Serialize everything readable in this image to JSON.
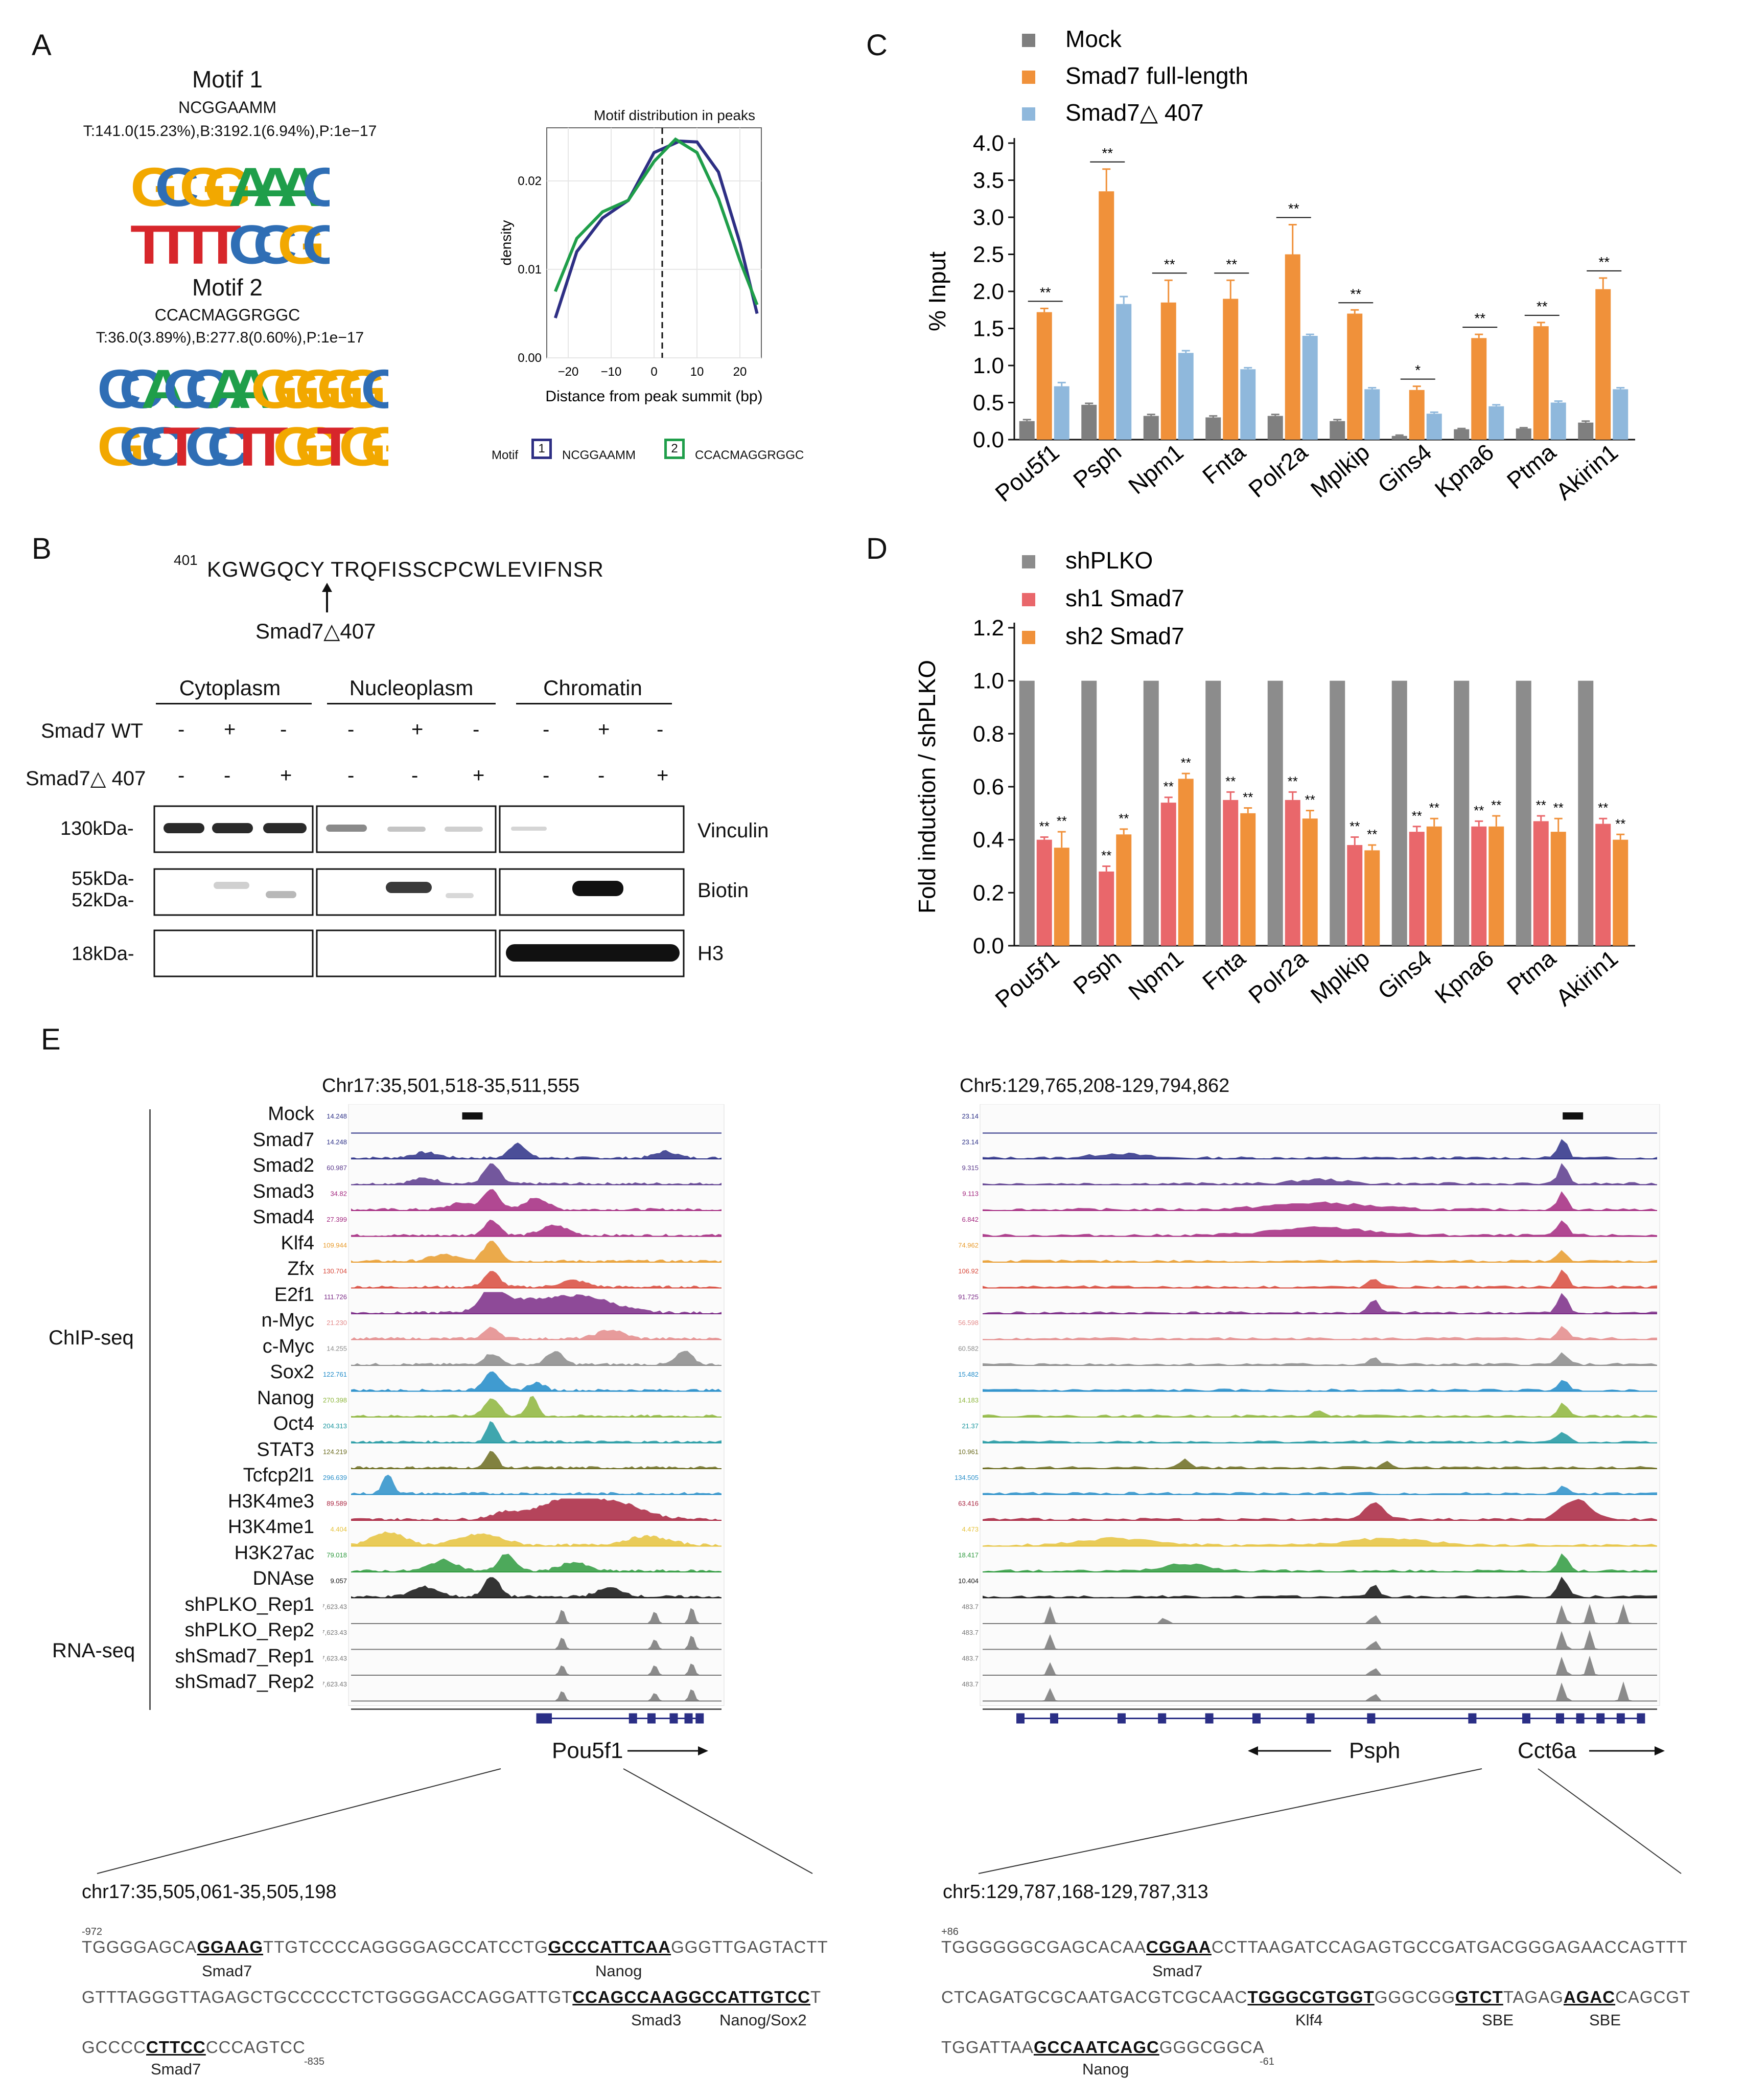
{
  "panel_letters": {
    "a": "A",
    "b": "B",
    "c": "C",
    "d": "D",
    "e": "E"
  },
  "panelA": {
    "motif1": {
      "title": "Motif 1",
      "consensus": "NCGGAAMM",
      "stats": "T:141.0(15.23%),B:3192.1(6.94%),P:1e−17",
      "logo_fwd": "GCGGAAAC",
      "logo_rev": "TTTTCCGC"
    },
    "motif2": {
      "title": "Motif 2",
      "consensus": "CCACMAGGRGGC",
      "stats": "T:36.0(3.89%),B:277.8(0.60%),P:1e−17",
      "logo_fwd": "CCACCAAGGGGGC",
      "logo_rev": "GCCTCCTTGGTGG"
    },
    "density": {
      "title": "Motif distribution in peaks",
      "xlabel": "Distance from peak summit (bp)",
      "ylabel": "density",
      "xticks": [
        "−20",
        "−10",
        "0",
        "10",
        "20"
      ],
      "yticks": [
        "0.00",
        "0.01",
        "0.02"
      ],
      "legend_title": "Motif",
      "legend": [
        {
          "num": "1",
          "name": "NCGGAAMM",
          "color": "#2e2f84"
        },
        {
          "num": "2",
          "name": "CCACMAGGRGGC",
          "color": "#1f9e4a"
        }
      ]
    }
  },
  "chart_data": [
    {
      "type": "bar",
      "panel": "C",
      "categories": [
        "Pou5f1",
        "Psph",
        "Npm1",
        "Fnta",
        "Polr2a",
        "Mplkip",
        "Gins4",
        "Kpna6",
        "Ptma",
        "Akirin1"
      ],
      "series": [
        {
          "name": "Mock",
          "color": "#7f7f7f",
          "values": [
            0.25,
            0.47,
            0.32,
            0.3,
            0.32,
            0.25,
            0.05,
            0.14,
            0.15,
            0.23
          ],
          "errors": [
            0.02,
            0.02,
            0.02,
            0.02,
            0.02,
            0.02,
            0.01,
            0.01,
            0.01,
            0.02
          ]
        },
        {
          "name": "Smad7 full-length",
          "color": "#f0913a",
          "values": [
            1.72,
            3.35,
            1.85,
            1.9,
            2.5,
            1.7,
            0.67,
            1.37,
            1.53,
            2.03
          ],
          "errors": [
            0.05,
            0.3,
            0.3,
            0.25,
            0.4,
            0.05,
            0.05,
            0.05,
            0.05,
            0.15
          ]
        },
        {
          "name": "Smad7△ 407",
          "color": "#8fb8dc",
          "values": [
            0.72,
            1.83,
            1.17,
            0.95,
            1.4,
            0.68,
            0.35,
            0.45,
            0.5,
            0.68
          ],
          "errors": [
            0.05,
            0.1,
            0.03,
            0.02,
            0.02,
            0.02,
            0.02,
            0.02,
            0.02,
            0.02
          ]
        }
      ],
      "significance": [
        "**",
        "**",
        "**",
        "**",
        "**",
        "**",
        "*",
        "**",
        "**",
        "**"
      ],
      "ylabel": "% Input",
      "ylim": [
        0,
        4.0
      ],
      "yticks": [
        "0.0",
        "0.5",
        "1.0",
        "1.5",
        "2.0",
        "2.5",
        "3.0",
        "3.5",
        "4.0"
      ]
    },
    {
      "type": "bar",
      "panel": "D",
      "categories": [
        "Pou5f1",
        "Psph",
        "Npm1",
        "Fnta",
        "Polr2a",
        "Mplkip",
        "Gins4",
        "Kpna6",
        "Ptma",
        "Akirin1"
      ],
      "series": [
        {
          "name": "shPLKO",
          "color": "#8c8c8c",
          "values": [
            1,
            1,
            1,
            1,
            1,
            1,
            1,
            1,
            1,
            1
          ],
          "errors": [
            0,
            0,
            0,
            0,
            0,
            0,
            0,
            0,
            0,
            0
          ]
        },
        {
          "name": "sh1 Smad7",
          "color": "#e9676b",
          "values": [
            0.4,
            0.28,
            0.54,
            0.55,
            0.55,
            0.38,
            0.43,
            0.45,
            0.47,
            0.46
          ],
          "errors": [
            0.01,
            0.02,
            0.02,
            0.03,
            0.03,
            0.03,
            0.02,
            0.02,
            0.02,
            0.02
          ]
        },
        {
          "name": "sh2 Smad7",
          "color": "#f0913a",
          "values": [
            0.37,
            0.42,
            0.63,
            0.5,
            0.48,
            0.36,
            0.45,
            0.45,
            0.43,
            0.4
          ],
          "errors": [
            0.06,
            0.02,
            0.02,
            0.02,
            0.03,
            0.02,
            0.03,
            0.04,
            0.05,
            0.02
          ]
        }
      ],
      "significance": [
        "**",
        "**",
        "**",
        "**",
        "**",
        "**",
        "**",
        "**",
        "**",
        "**"
      ],
      "ylabel": "Fold induction / shPLKO",
      "ylim": [
        0,
        1.2
      ],
      "yticks": [
        "0.0",
        "0.2",
        "0.4",
        "0.6",
        "0.8",
        "1.0",
        "1.2"
      ]
    }
  ],
  "panelB": {
    "peptide_num": "401",
    "peptide": "KGWGQCY TRQFISSCPCWLEVIFNSR",
    "arrow_label": "Smad7△407",
    "fractions": [
      "Cytoplasm",
      "Nucleoplasm",
      "Chromatin"
    ],
    "row_labels": [
      "Smad7 WT",
      "Smad7△ 407"
    ],
    "wt_signs": [
      "-",
      "+",
      "-",
      "-",
      "+",
      "-",
      "-",
      "+",
      "-"
    ],
    "del_signs": [
      "-",
      "-",
      "+",
      "-",
      "-",
      "+",
      "-",
      "-",
      "+"
    ],
    "mw": [
      "130kDa-",
      "55kDa-",
      "52kDa-",
      "18kDa-"
    ],
    "blots": [
      "Vinculin",
      "Biotin",
      "H3"
    ]
  },
  "panelE": {
    "left_region": "Chr17:35,501,518-35,511,555",
    "right_region": "Chr5:129,765,208-129,794,862",
    "chip_label": "ChIP-seq",
    "rna_label": "RNA-seq",
    "tracks": [
      "Mock",
      "Smad7",
      "Smad2",
      "Smad3",
      "Smad4",
      "Klf4",
      "Zfx",
      "E2f1",
      "n-Myc",
      "c-Myc",
      "Sox2",
      "Nanog",
      "Oct4",
      "STAT3",
      "Tcfcp2l1",
      "H3K4me3",
      "H3K4me1",
      "H3K27ac",
      "DNAse",
      "shPLKO_Rep1",
      "shPLKO_Rep2",
      "shSmad7_Rep1",
      "shSmad7_Rep2"
    ],
    "track_colors": [
      "#2b2f86",
      "#2b2f86",
      "#5b3a8c",
      "#a3287f",
      "#a3287f",
      "#e89b2c",
      "#d84a3c",
      "#7a2a86",
      "#e38a8a",
      "#8a8a8a",
      "#1e8ac8",
      "#8db53b",
      "#1d97a0",
      "#6b6b1f",
      "#2a8fc9",
      "#a8233e",
      "#e5c23b",
      "#2e9a3e",
      "#111111",
      "#777777",
      "#777777",
      "#777777",
      "#777777"
    ],
    "left_scales": [
      "14.248",
      "14.248",
      "60.987",
      "34.82",
      "27.399",
      "109.944",
      "130.704",
      "111.726",
      "21.230",
      "14.255",
      "122.761",
      "270.398",
      "204.313",
      "124.219",
      "296.639",
      "89.589",
      "4.404",
      "79.018",
      "9.057",
      "7,623.43",
      "7,623.43",
      "7,623.43",
      "7,623.43"
    ],
    "right_scales": [
      "23.14",
      "23.14",
      "9.315",
      "9.113",
      "6.842",
      "74.962",
      "106.92",
      "91.725",
      "56.598",
      "60.582",
      "15.482",
      "14.183",
      "21.37",
      "10.961",
      "134.505",
      "63.416",
      "4.473",
      "18.417",
      "10.404",
      "483.7",
      "483.7",
      "483.7",
      "483.7"
    ],
    "left_gene": "Pou5f1",
    "right_gene1": "Psph",
    "right_gene2": "Cct6a",
    "left_seq_region": "chr17:35,505,061-35,505,198",
    "right_seq_region": "chr5:129,787,168-129,787,313",
    "left_seq": {
      "start": "-972",
      "end": "-835",
      "l1_a": "TGGGGAGCA",
      "l1_b": "GGAAG",
      "l1_c": "TTGTCCCCAGGGGAGCCATCCTG",
      "l1_d": "GCCCATTCAA",
      "l1_e": "GGGTTGAGTACTT",
      "l2_a": "GTTTAGGGTTAGAGCTGCCCCCTCTGGGGACCAGGATTGT",
      "l2_b": "CCAGCCAAGGCCATTGTCC",
      "l2_c": "T",
      "l3_a": "GCCCC",
      "l3_b": "CTTCC",
      "l3_c": "CCCAGTCC",
      "ann": [
        "Smad7",
        "Nanog",
        "Smad3",
        "Nanog/Sox2",
        "Smad7"
      ]
    },
    "right_seq": {
      "start": "+86",
      "end": "-61",
      "l1_a": "TGGGGGGCGAGCACAA",
      "l1_b": "CGGAA",
      "l1_c": "CCTTAAGATCCAGAGTGCCGATGACGGGAGAACCAGTTT",
      "l2_a": "CTCAGATGCGCAATGACGTCGCAAC",
      "l2_b": "TGGGCGTGGT",
      "l2_c": "GGGCGG",
      "l2_d": "GTCT",
      "l2_e": "TAGAG",
      "l2_f": "AGAC",
      "l2_g": "CAGCGT",
      "l3_a": "TGGATTAA",
      "l3_b": "GCCAATCAGC",
      "l3_c": "GGGCGGCA",
      "ann": [
        "Smad7",
        "Klf4",
        "SBE",
        "SBE",
        "Nanog"
      ]
    }
  }
}
